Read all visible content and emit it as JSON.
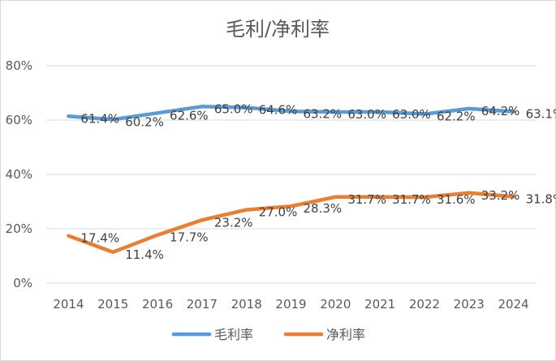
{
  "chart_data": {
    "type": "line",
    "title": "毛利/净利率",
    "x": [
      "2014",
      "2015",
      "2016",
      "2017",
      "2018",
      "2019",
      "2020",
      "2021",
      "2022",
      "2023",
      "2024"
    ],
    "ylim": [
      0,
      80
    ],
    "yticks": [
      "0%",
      "20%",
      "40%",
      "60%",
      "80%"
    ],
    "grid": true,
    "legend_position": "bottom",
    "series": [
      {
        "name": "毛利率",
        "color": "#5b9bd5",
        "values": [
          61.4,
          60.2,
          62.6,
          65.0,
          64.6,
          63.2,
          63.0,
          63.0,
          62.2,
          64.2,
          63.1
        ],
        "labels": [
          "61.4%",
          "60.2%",
          "62.6%",
          "65.0%",
          "64.6%",
          "63.2%",
          "63.0%",
          "63.0%",
          "62.2%",
          "64.2%",
          "63.1%"
        ],
        "label_shown": [
          true,
          true,
          true,
          true,
          true,
          true,
          true,
          true,
          true,
          true,
          true
        ]
      },
      {
        "name": "净利率",
        "color": "#ed7d31",
        "values": [
          17.4,
          11.4,
          17.7,
          23.2,
          27.0,
          28.3,
          31.7,
          31.7,
          31.6,
          33.2,
          31.8
        ],
        "labels": [
          "17.4%",
          "11.4%",
          "17.7%",
          "23.2%",
          "27.0%",
          "28.3%",
          "31.7%",
          "31.7%",
          "31.6%",
          "33.2%",
          "31.8%"
        ],
        "label_shown": [
          true,
          true,
          true,
          true,
          true,
          true,
          true,
          true,
          true,
          true,
          true
        ]
      }
    ]
  }
}
